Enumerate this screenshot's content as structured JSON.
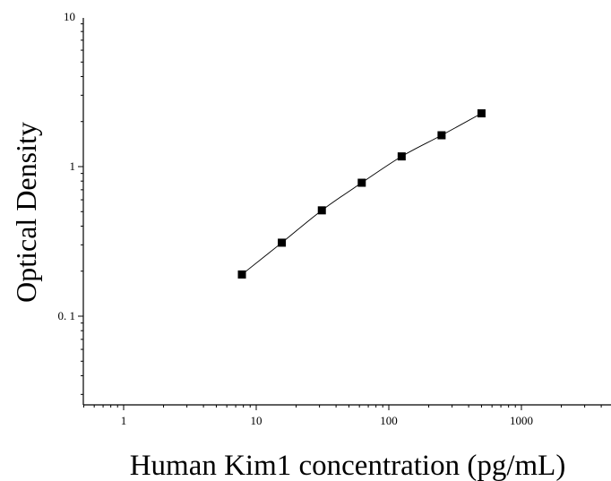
{
  "chart_data": {
    "type": "scatter",
    "xlabel": "Human Kim1 concentration (pg/mL)",
    "ylabel": "Optical Density",
    "x_scale": "log",
    "y_scale": "log",
    "xlim": [
      0.5,
      5000
    ],
    "ylim": [
      0.025,
      10
    ],
    "x_ticks": [
      1,
      10,
      100,
      1000
    ],
    "x_tick_labels": [
      "1",
      "10",
      "100",
      "1000"
    ],
    "y_ticks": [
      0.1,
      1,
      10
    ],
    "y_tick_labels": [
      "0. 1",
      "1",
      "10"
    ],
    "grid": false,
    "legend": "none",
    "series": [
      {
        "marker": "square",
        "fit_line": true,
        "x": [
          7.8,
          15.6,
          31.25,
          62.5,
          125,
          250,
          500
        ],
        "y": [
          0.19,
          0.31,
          0.51,
          0.78,
          1.17,
          1.62,
          2.27
        ]
      }
    ],
    "colors": {
      "marker": "#000000",
      "line": "#000000"
    }
  }
}
